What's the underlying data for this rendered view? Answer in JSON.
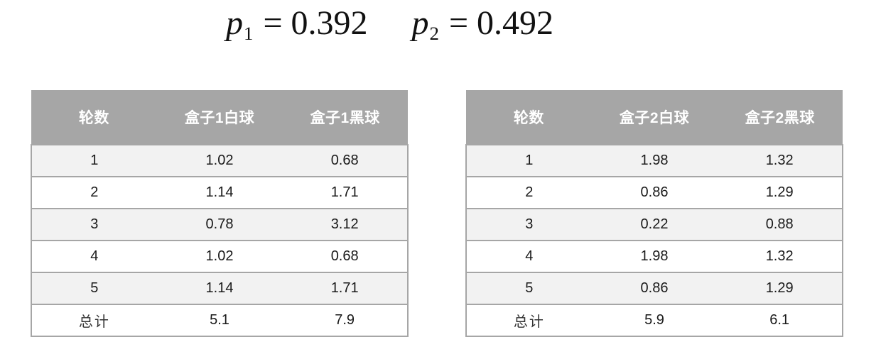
{
  "colors": {
    "header_bg": "#a6a6a6",
    "header_text": "#ffffff",
    "alt_row_bg": "#f2f2f2",
    "grid_line": "#a6a6a6",
    "body_text": "#1a1a1a"
  },
  "formulas": [
    {
      "var": "p",
      "sub": "1",
      "rel": "=",
      "value": "0.392"
    },
    {
      "var": "p",
      "sub": "2",
      "rel": "=",
      "value": "0.492"
    }
  ],
  "tables": [
    {
      "name": "box1-results-table",
      "headers": [
        "轮数",
        "盒子1白球",
        "盒子1黑球"
      ],
      "rows": [
        [
          "1",
          "1.02",
          "0.68"
        ],
        [
          "2",
          "1.14",
          "1.71"
        ],
        [
          "3",
          "0.78",
          "3.12"
        ],
        [
          "4",
          "1.02",
          "0.68"
        ],
        [
          "5",
          "1.14",
          "1.71"
        ],
        [
          "总计",
          "5.1",
          "7.9"
        ]
      ],
      "total_row_label": "总计"
    },
    {
      "name": "box2-results-table",
      "headers": [
        "轮数",
        "盒子2白球",
        "盒子2黑球"
      ],
      "rows": [
        [
          "1",
          "1.98",
          "1.32"
        ],
        [
          "2",
          "0.86",
          "1.29"
        ],
        [
          "3",
          "0.22",
          "0.88"
        ],
        [
          "4",
          "1.98",
          "1.32"
        ],
        [
          "5",
          "0.86",
          "1.29"
        ],
        [
          "总计",
          "5.9",
          "6.1"
        ]
      ],
      "total_row_label": "总计"
    }
  ]
}
